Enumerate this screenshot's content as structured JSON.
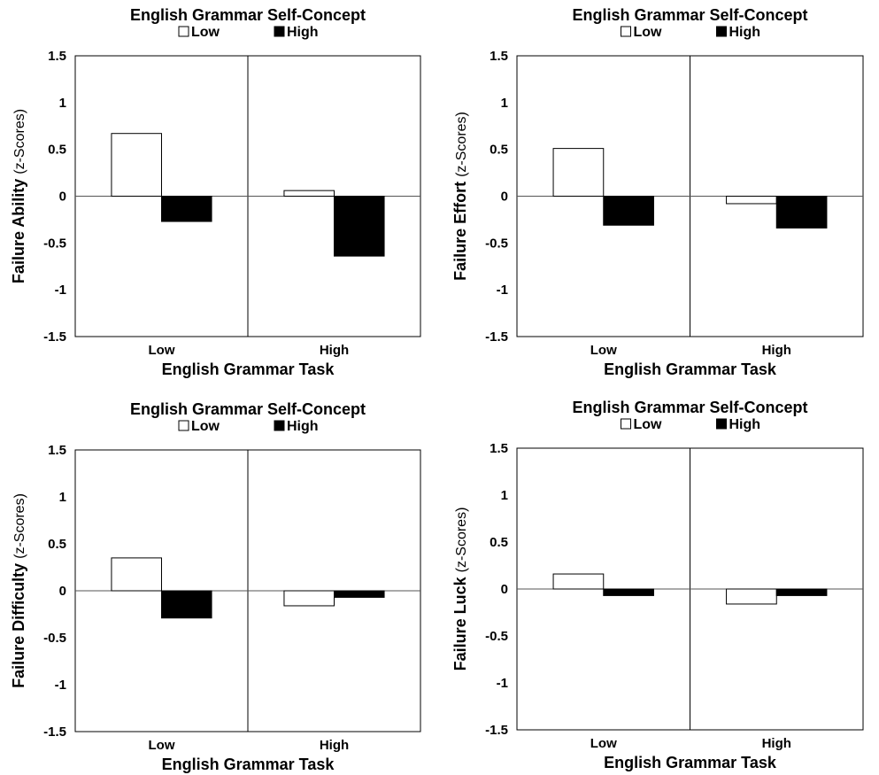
{
  "colors": {
    "low": "#ffffff",
    "high": "#000000",
    "stroke": "#000000"
  },
  "chart_data": [
    {
      "type": "bar",
      "title": "English Grammar Self-Concept",
      "xlabel": "English Grammar Task",
      "ylabel_main": "Failure Ability",
      "ylabel_sub": "(z-Scores)",
      "categories": [
        "Low",
        "High"
      ],
      "ylim": [
        -1.5,
        1.5
      ],
      "yticks": [
        "1.5",
        "1",
        "0.5",
        "0",
        "-0.5",
        "-1",
        "-1.5"
      ],
      "legend_position": "top-center",
      "grid": false,
      "series": [
        {
          "name": "Low",
          "values": [
            0.67,
            0.06
          ]
        },
        {
          "name": "High",
          "values": [
            -0.27,
            -0.64
          ]
        }
      ]
    },
    {
      "type": "bar",
      "title": "English Grammar Self-Concept",
      "xlabel": "English Grammar Task",
      "ylabel_main": "Failure Effort",
      "ylabel_sub": "(z-Scores)",
      "categories": [
        "Low",
        "High"
      ],
      "ylim": [
        -1.5,
        1.5
      ],
      "yticks": [
        "1.5",
        "1",
        "0.5",
        "0",
        "-0.5",
        "-1",
        "-1.5"
      ],
      "legend_position": "top-center",
      "grid": false,
      "series": [
        {
          "name": "Low",
          "values": [
            0.51,
            -0.08
          ]
        },
        {
          "name": "High",
          "values": [
            -0.31,
            -0.34
          ]
        }
      ]
    },
    {
      "type": "bar",
      "title": "English Grammar Self-Concept",
      "xlabel": "English Grammar Task",
      "ylabel_main": "Failure Difficulty",
      "ylabel_sub": "(z-Scores)",
      "categories": [
        "Low",
        "High"
      ],
      "ylim": [
        -1.5,
        1.5
      ],
      "yticks": [
        "1.5",
        "1",
        "0.5",
        "0",
        "-0.5",
        "-1",
        "-1.5"
      ],
      "legend_position": "top-center",
      "grid": false,
      "series": [
        {
          "name": "Low",
          "values": [
            0.35,
            -0.16
          ]
        },
        {
          "name": "High",
          "values": [
            -0.29,
            -0.07
          ]
        }
      ]
    },
    {
      "type": "bar",
      "title": "English Grammar Self-Concept",
      "xlabel": "English Grammar Task",
      "ylabel_main": "Failure Luck",
      "ylabel_sub": "(z-Scores)",
      "categories": [
        "Low",
        "High"
      ],
      "ylim": [
        -1.5,
        1.5
      ],
      "yticks": [
        "1.5",
        "1",
        "0.5",
        "0",
        "-0.5",
        "-1",
        "-1.5"
      ],
      "legend_position": "top-center",
      "grid": false,
      "series": [
        {
          "name": "Low",
          "values": [
            0.16,
            -0.16
          ]
        },
        {
          "name": "High",
          "values": [
            -0.07,
            -0.07
          ]
        }
      ]
    }
  ]
}
